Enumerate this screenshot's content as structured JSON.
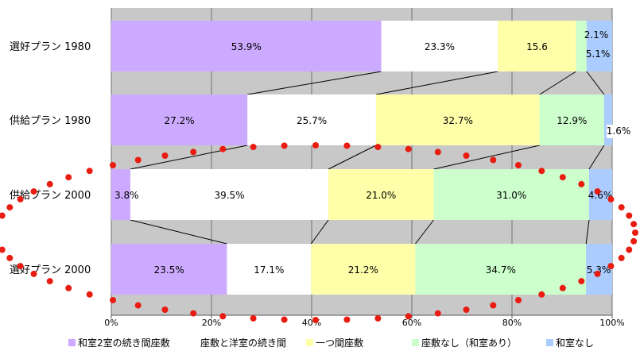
{
  "chart_data": {
    "type": "bar",
    "orientation": "horizontal",
    "stacked": true,
    "percent_stacked": true,
    "grid": true,
    "legend_placement": "bottom",
    "xlim": [
      0,
      100
    ],
    "x_ticks": [
      "0%",
      "20%",
      "40%",
      "60%",
      "80%",
      "100%"
    ],
    "categories": [
      "選好プラン 1980",
      "供給プラン 1980",
      "供給プラン 2000",
      "選好プラン 2000"
    ],
    "series": [
      {
        "name": "和室2室の続き間座敷",
        "color": "#ccaaff",
        "values": [
          53.9,
          27.2,
          3.8,
          23.5
        ],
        "labels": [
          "53.9%",
          "27.2%",
          "3.8%",
          "23.5%"
        ]
      },
      {
        "name": "座敷と洋室の続き間",
        "color": "#ffffff",
        "values": [
          23.3,
          25.7,
          39.5,
          17.1
        ],
        "labels": [
          "23.3%",
          "25.7%",
          "39.5%",
          "17.1%"
        ]
      },
      {
        "name": "一つ間座敷",
        "color": "#ffffaa",
        "values": [
          15.6,
          32.7,
          21.0,
          21.2
        ],
        "labels": [
          "15.6",
          "32.7%",
          "21.0%",
          "21.2%"
        ]
      },
      {
        "name": "座敷なし（和室あり）",
        "color": "#ccffcc",
        "values": [
          2.1,
          12.9,
          31.0,
          34.7
        ],
        "labels": [
          "2.1%",
          "12.9%",
          "31.0%",
          "34.7%"
        ]
      },
      {
        "name": "和室なし",
        "color": "#aaccff",
        "values": [
          5.1,
          1.6,
          4.6,
          5.3
        ],
        "labels": [
          "5.1%",
          "1.6%",
          "4.6%",
          "5.3%"
        ]
      }
    ],
    "annotation": {
      "shape": "dotted-ellipse",
      "color": "#e81c10"
    }
  }
}
